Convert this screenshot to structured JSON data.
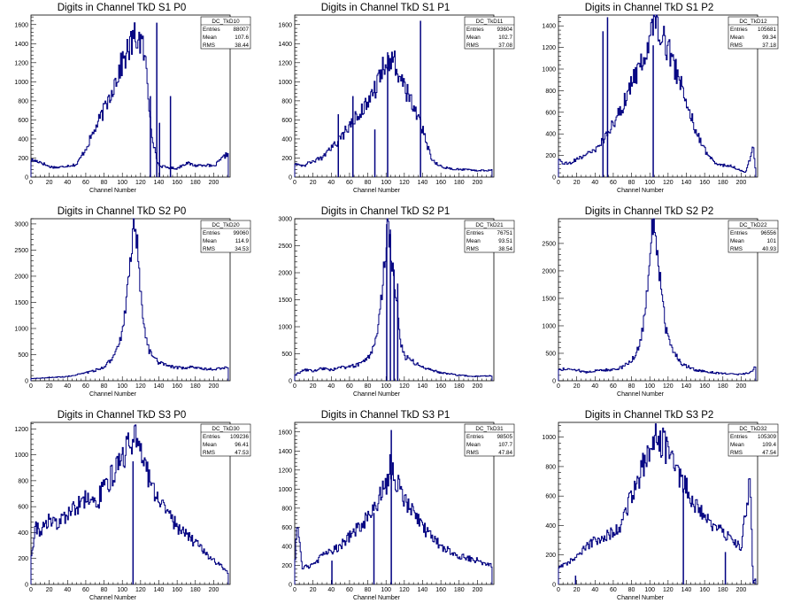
{
  "chart_data": [
    {
      "type": "histogram",
      "title": "Digits in Channel TkD S1 P0",
      "xlabel": "Channel Number",
      "ylabel": "",
      "xlim": [
        0,
        218
      ],
      "ylim": [
        0,
        1700
      ],
      "xticks": [
        0,
        20,
        40,
        60,
        80,
        100,
        120,
        140,
        160,
        180,
        200
      ],
      "yticks": [
        0,
        200,
        400,
        600,
        800,
        1000,
        1200,
        1400,
        1600
      ],
      "stats": {
        "name": "DC_TkD10",
        "entries": "88007",
        "mean": "107.6",
        "rms": "38.44"
      },
      "profile": [
        [
          0,
          180
        ],
        [
          10,
          160
        ],
        [
          20,
          110
        ],
        [
          30,
          100
        ],
        [
          40,
          120
        ],
        [
          50,
          130
        ],
        [
          60,
          300
        ],
        [
          70,
          500
        ],
        [
          80,
          700
        ],
        [
          90,
          950
        ],
        [
          100,
          1200
        ],
        [
          110,
          1400
        ],
        [
          115,
          1480
        ],
        [
          120,
          1430
        ],
        [
          125,
          1250
        ],
        [
          128,
          900
        ],
        [
          132,
          500
        ],
        [
          136,
          250
        ],
        [
          140,
          120
        ],
        [
          150,
          100
        ],
        [
          160,
          90
        ],
        [
          170,
          150
        ],
        [
          180,
          120
        ],
        [
          190,
          130
        ],
        [
          200,
          110
        ],
        [
          210,
          200
        ],
        [
          216,
          250
        ]
      ],
      "spikes": [
        [
          130,
          850
        ],
        [
          137,
          1620
        ],
        [
          140,
          570
        ],
        [
          152,
          850
        ]
      ]
    },
    {
      "type": "histogram",
      "title": "Digits in Channel TkD S1 P1",
      "xlabel": "Channel Number",
      "ylabel": "",
      "xlim": [
        0,
        218
      ],
      "ylim": [
        0,
        1700
      ],
      "xticks": [
        0,
        20,
        40,
        60,
        80,
        100,
        120,
        140,
        160,
        180,
        200
      ],
      "yticks": [
        0,
        200,
        400,
        600,
        800,
        1000,
        1200,
        1400,
        1600
      ],
      "stats": {
        "name": "DC_TkD11",
        "entries": "93604",
        "mean": "102.7",
        "rms": "37.08"
      },
      "profile": [
        [
          0,
          150
        ],
        [
          10,
          120
        ],
        [
          20,
          170
        ],
        [
          30,
          200
        ],
        [
          40,
          300
        ],
        [
          50,
          400
        ],
        [
          60,
          550
        ],
        [
          70,
          650
        ],
        [
          80,
          800
        ],
        [
          90,
          950
        ],
        [
          100,
          1250
        ],
        [
          110,
          1180
        ],
        [
          120,
          950
        ],
        [
          130,
          750
        ],
        [
          140,
          500
        ],
        [
          150,
          180
        ],
        [
          160,
          110
        ],
        [
          170,
          90
        ],
        [
          180,
          80
        ],
        [
          190,
          80
        ],
        [
          200,
          70
        ],
        [
          210,
          70
        ],
        [
          216,
          80
        ]
      ],
      "spikes": [
        [
          47,
          660
        ],
        [
          63,
          850
        ],
        [
          87,
          500
        ],
        [
          101,
          1310
        ],
        [
          137,
          1640
        ]
      ]
    },
    {
      "type": "histogram",
      "title": "Digits in Channel TkD S1 P2",
      "xlabel": "Channel Number",
      "ylabel": "",
      "xlim": [
        0,
        218
      ],
      "ylim": [
        0,
        1500
      ],
      "xticks": [
        0,
        20,
        40,
        60,
        80,
        100,
        120,
        140,
        160,
        180,
        200
      ],
      "yticks": [
        0,
        200,
        400,
        600,
        800,
        1000,
        1200,
        1400
      ],
      "stats": {
        "name": "DC_TkD12",
        "entries": "105681",
        "mean": "99.34",
        "rms": "37.18"
      },
      "profile": [
        [
          0,
          150
        ],
        [
          10,
          120
        ],
        [
          20,
          170
        ],
        [
          30,
          200
        ],
        [
          40,
          250
        ],
        [
          50,
          350
        ],
        [
          60,
          500
        ],
        [
          70,
          650
        ],
        [
          80,
          850
        ],
        [
          90,
          1050
        ],
        [
          100,
          1300
        ],
        [
          105,
          1480
        ],
        [
          110,
          1400
        ],
        [
          120,
          1200
        ],
        [
          130,
          950
        ],
        [
          140,
          700
        ],
        [
          150,
          450
        ],
        [
          160,
          250
        ],
        [
          170,
          140
        ],
        [
          180,
          110
        ],
        [
          190,
          100
        ],
        [
          200,
          60
        ],
        [
          205,
          40
        ],
        [
          210,
          180
        ],
        [
          213,
          320
        ],
        [
          216,
          40
        ]
      ],
      "spikes": [
        [
          48,
          1350
        ],
        [
          53,
          1480
        ],
        [
          103,
          1220
        ]
      ]
    },
    {
      "type": "histogram",
      "title": "Digits in Channel TkD S2 P0",
      "xlabel": "Channel Number",
      "ylabel": "",
      "xlim": [
        0,
        218
      ],
      "ylim": [
        0,
        3100
      ],
      "xticks": [
        0,
        20,
        40,
        60,
        80,
        100,
        120,
        140,
        160,
        180,
        200
      ],
      "yticks": [
        0,
        500,
        1000,
        1500,
        2000,
        2500,
        3000
      ],
      "stats": {
        "name": "DC_TkD20",
        "entries": "99060",
        "mean": "114.9",
        "rms": "34.53"
      },
      "profile": [
        [
          0,
          40
        ],
        [
          20,
          60
        ],
        [
          40,
          80
        ],
        [
          60,
          150
        ],
        [
          80,
          250
        ],
        [
          90,
          450
        ],
        [
          100,
          900
        ],
        [
          105,
          1600
        ],
        [
          110,
          2600
        ],
        [
          113,
          2980
        ],
        [
          116,
          2700
        ],
        [
          120,
          1700
        ],
        [
          125,
          900
        ],
        [
          130,
          550
        ],
        [
          140,
          350
        ],
        [
          150,
          280
        ],
        [
          160,
          250
        ],
        [
          170,
          250
        ],
        [
          180,
          260
        ],
        [
          190,
          230
        ],
        [
          200,
          220
        ],
        [
          210,
          240
        ],
        [
          216,
          260
        ]
      ],
      "spikes": []
    },
    {
      "type": "histogram",
      "title": "Digits in Channel TkD S2 P1",
      "xlabel": "Channel Number",
      "ylabel": "",
      "xlim": [
        0,
        218
      ],
      "ylim": [
        0,
        3000
      ],
      "xticks": [
        0,
        20,
        40,
        60,
        80,
        100,
        120,
        140,
        160,
        180,
        200
      ],
      "yticks": [
        0,
        500,
        1000,
        1500,
        2000,
        2500,
        3000
      ],
      "stats": {
        "name": "DC_TkD21",
        "entries": "76751",
        "mean": "93.51",
        "rms": "38.54"
      },
      "profile": [
        [
          0,
          100
        ],
        [
          10,
          200
        ],
        [
          20,
          180
        ],
        [
          30,
          230
        ],
        [
          40,
          200
        ],
        [
          50,
          240
        ],
        [
          60,
          260
        ],
        [
          70,
          300
        ],
        [
          80,
          400
        ],
        [
          90,
          800
        ],
        [
          95,
          1500
        ],
        [
          98,
          2100
        ],
        [
          101,
          2850
        ],
        [
          105,
          2500
        ],
        [
          108,
          2000
        ],
        [
          112,
          1500
        ],
        [
          115,
          800
        ],
        [
          120,
          450
        ],
        [
          130,
          350
        ],
        [
          140,
          250
        ],
        [
          160,
          150
        ],
        [
          180,
          100
        ],
        [
          200,
          80
        ],
        [
          216,
          90
        ]
      ],
      "spikes": [
        [
          100,
          2900
        ],
        [
          104,
          2800
        ],
        [
          108,
          2060
        ],
        [
          112,
          1800
        ]
      ]
    },
    {
      "type": "histogram",
      "title": "Digits in Channel TkD S2 P2",
      "xlabel": "Channel Number",
      "ylabel": "",
      "xlim": [
        0,
        218
      ],
      "ylim": [
        0,
        2950
      ],
      "xticks": [
        0,
        20,
        40,
        60,
        80,
        100,
        120,
        140,
        160,
        180,
        200
      ],
      "yticks": [
        0,
        500,
        1000,
        1500,
        2000,
        2500
      ],
      "stats": {
        "name": "DC_TkD22",
        "entries": "96556",
        "mean": "101",
        "rms": "40.93"
      },
      "profile": [
        [
          0,
          200
        ],
        [
          10,
          220
        ],
        [
          20,
          200
        ],
        [
          30,
          150
        ],
        [
          40,
          180
        ],
        [
          50,
          200
        ],
        [
          60,
          200
        ],
        [
          70,
          250
        ],
        [
          80,
          350
        ],
        [
          90,
          700
        ],
        [
          95,
          1300
        ],
        [
          100,
          2300
        ],
        [
          104,
          2870
        ],
        [
          108,
          2500
        ],
        [
          112,
          1700
        ],
        [
          118,
          900
        ],
        [
          125,
          550
        ],
        [
          135,
          300
        ],
        [
          150,
          200
        ],
        [
          170,
          150
        ],
        [
          190,
          120
        ],
        [
          200,
          120
        ],
        [
          210,
          140
        ],
        [
          216,
          280
        ]
      ],
      "spikes": []
    },
    {
      "type": "histogram",
      "title": "Digits in Channel TkD S3 P0",
      "xlabel": "Channel Number",
      "ylabel": "",
      "xlim": [
        0,
        218
      ],
      "ylim": [
        0,
        1250
      ],
      "xticks": [
        0,
        20,
        40,
        60,
        80,
        100,
        120,
        140,
        160,
        180,
        200
      ],
      "yticks": [
        0,
        200,
        400,
        600,
        800,
        1000,
        1200
      ],
      "stats": {
        "name": "DC_TkD30",
        "entries": "109236",
        "mean": "96.41",
        "rms": "47.53"
      },
      "profile": [
        [
          0,
          200
        ],
        [
          5,
          450
        ],
        [
          10,
          400
        ],
        [
          20,
          500
        ],
        [
          30,
          450
        ],
        [
          40,
          550
        ],
        [
          50,
          600
        ],
        [
          60,
          650
        ],
        [
          70,
          600
        ],
        [
          80,
          750
        ],
        [
          90,
          850
        ],
        [
          100,
          1000
        ],
        [
          110,
          1100
        ],
        [
          115,
          1150
        ],
        [
          120,
          1050
        ],
        [
          125,
          900
        ],
        [
          130,
          800
        ],
        [
          140,
          650
        ],
        [
          150,
          550
        ],
        [
          160,
          450
        ],
        [
          170,
          380
        ],
        [
          180,
          320
        ],
        [
          190,
          250
        ],
        [
          200,
          180
        ],
        [
          210,
          130
        ],
        [
          216,
          90
        ]
      ],
      "spikes": [
        [
          111,
          950
        ]
      ]
    },
    {
      "type": "histogram",
      "title": "Digits in Channel TkD S3 P1",
      "xlabel": "Channel Number",
      "ylabel": "",
      "xlim": [
        0,
        218
      ],
      "ylim": [
        0,
        1700
      ],
      "xticks": [
        0,
        20,
        40,
        60,
        80,
        100,
        120,
        140,
        160,
        180,
        200
      ],
      "yticks": [
        0,
        200,
        400,
        600,
        800,
        1000,
        1200,
        1400,
        1600
      ],
      "stats": {
        "name": "DC_TkD31",
        "entries": "98505",
        "mean": "107.7",
        "rms": "47.84"
      },
      "profile": [
        [
          0,
          200
        ],
        [
          3,
          650
        ],
        [
          8,
          180
        ],
        [
          20,
          200
        ],
        [
          30,
          300
        ],
        [
          40,
          350
        ],
        [
          50,
          400
        ],
        [
          60,
          500
        ],
        [
          70,
          600
        ],
        [
          80,
          700
        ],
        [
          90,
          850
        ],
        [
          100,
          1050
        ],
        [
          105,
          1250
        ],
        [
          110,
          1100
        ],
        [
          120,
          900
        ],
        [
          130,
          750
        ],
        [
          140,
          600
        ],
        [
          150,
          500
        ],
        [
          160,
          400
        ],
        [
          170,
          350
        ],
        [
          180,
          300
        ],
        [
          190,
          280
        ],
        [
          200,
          250
        ],
        [
          210,
          220
        ],
        [
          216,
          200
        ]
      ],
      "spikes": [
        [
          40,
          250
        ],
        [
          86,
          750
        ],
        [
          105,
          1620
        ]
      ]
    },
    {
      "type": "histogram",
      "title": "Digits in Channel TkD S3 P2",
      "xlabel": "Channel Number",
      "ylabel": "",
      "xlim": [
        0,
        218
      ],
      "ylim": [
        0,
        1100
      ],
      "xticks": [
        0,
        20,
        40,
        60,
        80,
        100,
        120,
        140,
        160,
        180,
        200
      ],
      "yticks": [
        0,
        200,
        400,
        600,
        800,
        1000
      ],
      "stats": {
        "name": "DC_TkD32",
        "entries": "105309",
        "mean": "109.4",
        "rms": "47.54"
      },
      "profile": [
        [
          0,
          120
        ],
        [
          10,
          150
        ],
        [
          20,
          180
        ],
        [
          30,
          250
        ],
        [
          40,
          300
        ],
        [
          50,
          330
        ],
        [
          60,
          350
        ],
        [
          70,
          420
        ],
        [
          80,
          600
        ],
        [
          90,
          750
        ],
        [
          100,
          950
        ],
        [
          105,
          1050
        ],
        [
          110,
          1000
        ],
        [
          120,
          900
        ],
        [
          130,
          750
        ],
        [
          140,
          650
        ],
        [
          150,
          550
        ],
        [
          160,
          450
        ],
        [
          170,
          400
        ],
        [
          180,
          350
        ],
        [
          190,
          300
        ],
        [
          200,
          250
        ],
        [
          205,
          500
        ],
        [
          210,
          700
        ],
        [
          213,
          0
        ],
        [
          216,
          50
        ]
      ],
      "spikes": [
        [
          18,
          60
        ],
        [
          136,
          650
        ],
        [
          182,
          220
        ]
      ]
    }
  ],
  "stats_labels": {
    "entries": "Entries",
    "mean": "Mean",
    "rms": "RMS"
  }
}
